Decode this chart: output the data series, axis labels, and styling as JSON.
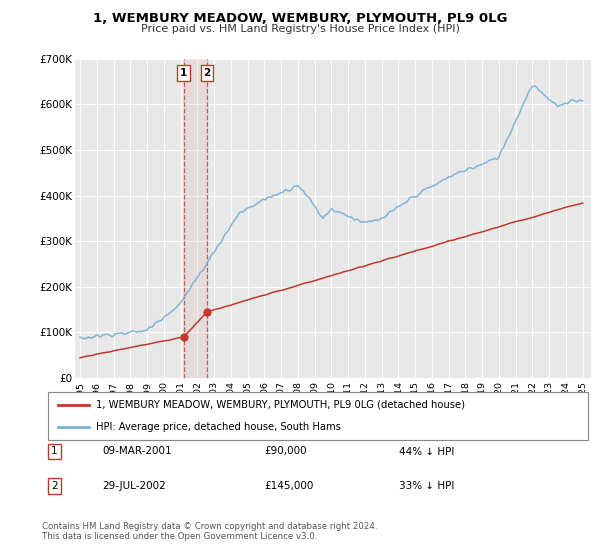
{
  "title": "1, WEMBURY MEADOW, WEMBURY, PLYMOUTH, PL9 0LG",
  "subtitle": "Price paid vs. HM Land Registry's House Price Index (HPI)",
  "legend_line1": "1, WEMBURY MEADOW, WEMBURY, PLYMOUTH, PL9 0LG (detached house)",
  "legend_line2": "HPI: Average price, detached house, South Hams",
  "table_rows": [
    {
      "num": "1",
      "date": "09-MAR-2001",
      "price": "£90,000",
      "rel": "44% ↓ HPI"
    },
    {
      "num": "2",
      "date": "29-JUL-2002",
      "price": "£145,000",
      "rel": "33% ↓ HPI"
    }
  ],
  "footer": "Contains HM Land Registry data © Crown copyright and database right 2024.\nThis data is licensed under the Open Government Licence v3.0.",
  "hpi_color": "#7ab3d4",
  "price_color": "#c0392b",
  "sale1_date_num": 2001.19,
  "sale1_price": 90000,
  "sale2_date_num": 2002.57,
  "sale2_price": 145000,
  "vline1_x": 2001.19,
  "vline2_x": 2002.57,
  "ylim": [
    0,
    700000
  ],
  "xlim_start": 1994.7,
  "xlim_end": 2025.5,
  "yticks": [
    0,
    100000,
    200000,
    300000,
    400000,
    500000,
    600000,
    700000
  ],
  "ytick_labels": [
    "£0",
    "£100K",
    "£200K",
    "£300K",
    "£400K",
    "£500K",
    "£600K",
    "£700K"
  ],
  "xtick_years": [
    1995,
    1996,
    1997,
    1998,
    1999,
    2000,
    2001,
    2002,
    2003,
    2004,
    2005,
    2006,
    2007,
    2008,
    2009,
    2010,
    2011,
    2012,
    2013,
    2014,
    2015,
    2016,
    2017,
    2018,
    2019,
    2020,
    2021,
    2022,
    2023,
    2024,
    2025
  ]
}
